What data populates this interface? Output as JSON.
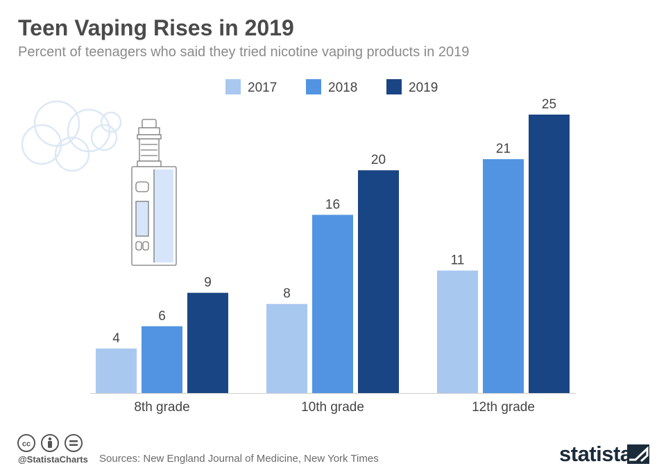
{
  "title": "Teen Vaping Rises in 2019",
  "subtitle": "Percent of teenagers who said they tried nicotine vaping products in 2019",
  "footer": {
    "handle": "@StatistaCharts",
    "sources": "Sources: New England Journal of Medicine, New York Times",
    "brand": "statista",
    "license_icons": [
      "cc-icon",
      "attribution-icon",
      "no-derivatives-icon"
    ]
  },
  "decoration": {
    "icons": [
      "vape-device-icon",
      "vapor-cloud-icon"
    ]
  },
  "chart_data": {
    "type": "bar",
    "title": "Teen Vaping Rises in 2019",
    "subtitle": "Percent of teenagers who said they tried nicotine vaping products in 2019",
    "categories": [
      "8th grade",
      "10th grade",
      "12th grade"
    ],
    "series": [
      {
        "name": "2017",
        "color": "#a8c8f0",
        "values": [
          4,
          8,
          11
        ]
      },
      {
        "name": "2018",
        "color": "#5294e2",
        "values": [
          6,
          16,
          21
        ]
      },
      {
        "name": "2019",
        "color": "#1a4584",
        "values": [
          9,
          20,
          25
        ]
      }
    ],
    "xlabel": "",
    "ylabel": "",
    "ylim": [
      0,
      25
    ],
    "grid": false,
    "legend": "top-center",
    "data_labels": true
  }
}
